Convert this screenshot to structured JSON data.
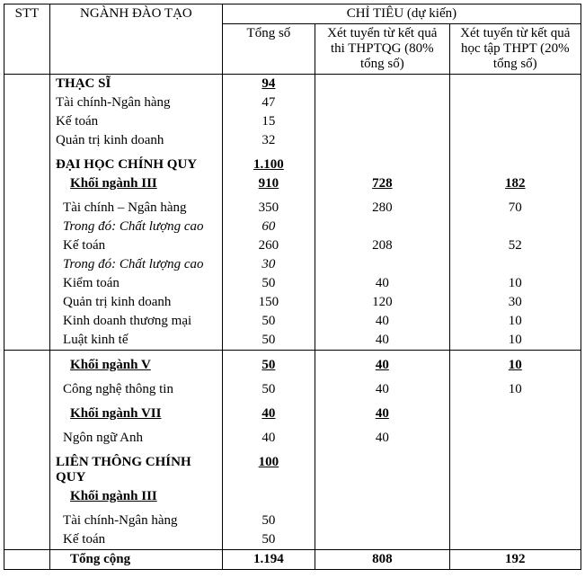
{
  "header": {
    "stt": "STT",
    "name": "NGÀNH ĐÀO TẠO",
    "group": "CHỈ TIÊU (dự kiến)",
    "c1": "Tổng số",
    "c2": "Xét tuyển từ kết quả thi THPTQG (80% tổng số)",
    "c3": "Xét tuyển từ kết quả học tập THPT (20% tổng số)"
  },
  "sec": {
    "thacsi": {
      "label": "THẠC SĨ",
      "c1": "94"
    },
    "daihoc": {
      "label": "ĐẠI HỌC CHÍNH QUY",
      "c1": "1.100"
    },
    "k3": {
      "label": "Khối ngành III",
      "c1": "910",
      "c2": "728",
      "c3": "182"
    },
    "k5": {
      "label": "Khối ngành V",
      "c1": "50",
      "c2": "40",
      "c3": "10"
    },
    "k7": {
      "label": "Khối ngành VII",
      "c1": "40",
      "c2": "40"
    },
    "lienthong": {
      "label": "LIÊN THÔNG CHÍNH QUY",
      "c1": "100"
    },
    "lt_k3": {
      "label": "Khối ngành III"
    },
    "total": {
      "label": "Tổng cộng",
      "c1": "1.194",
      "c2": "808",
      "c3": "192"
    }
  },
  "r": {
    "ts1": {
      "name": "Tài chính-Ngân hàng",
      "c1": "47"
    },
    "ts2": {
      "name": "Kế toán",
      "c1": "15"
    },
    "ts3": {
      "name": "Quản trị kinh doanh",
      "c1": "32"
    },
    "k3_1": {
      "name": "Tài chính – Ngân hàng",
      "c1": "350",
      "c2": "280",
      "c3": "70"
    },
    "k3_1cl": {
      "name": "Trong đó: Chất lượng cao",
      "c1": "60"
    },
    "k3_2": {
      "name": "Kế toán",
      "c1": "260",
      "c2": "208",
      "c3": "52"
    },
    "k3_2cl": {
      "name": "Trong đó: Chất lượng cao",
      "c1": "30"
    },
    "k3_3": {
      "name": "Kiểm toán",
      "c1": "50",
      "c2": "40",
      "c3": "10"
    },
    "k3_4": {
      "name": "Quản trị kinh doanh",
      "c1": "150",
      "c2": "120",
      "c3": "30"
    },
    "k3_5": {
      "name": "Kinh doanh thương mại",
      "c1": "50",
      "c2": "40",
      "c3": "10"
    },
    "k3_6": {
      "name": "Luật kinh tế",
      "c1": "50",
      "c2": "40",
      "c3": "10"
    },
    "k5_1": {
      "name": "Công nghệ thông tin",
      "c1": "50",
      "c2": "40",
      "c3": "10"
    },
    "k7_1": {
      "name": "Ngôn ngữ Anh",
      "c1": "40",
      "c2": "40"
    },
    "lt_1": {
      "name": "Tài chính-Ngân hàng",
      "c1": "50"
    },
    "lt_2": {
      "name": "Kế toán",
      "c1": "50"
    }
  }
}
